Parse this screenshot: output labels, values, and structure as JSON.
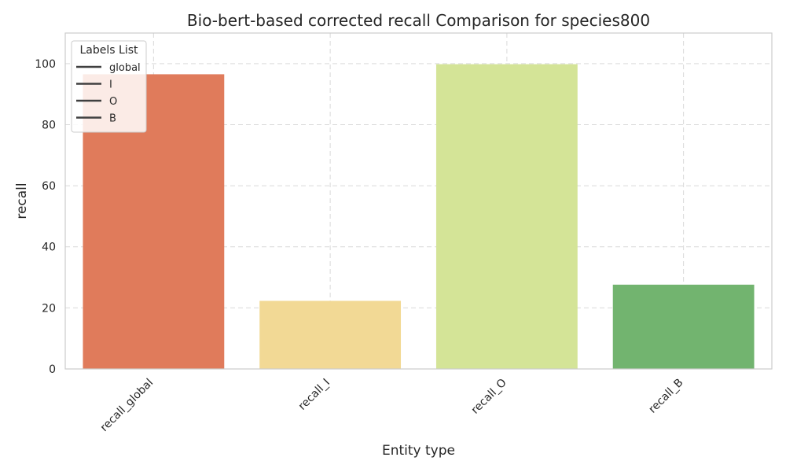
{
  "chart_data": {
    "type": "bar",
    "title": "Bio-bert-based corrected recall Comparison for species800",
    "xlabel": "Entity type",
    "ylabel": "recall",
    "categories": [
      "recall_global",
      "recall_I",
      "recall_O",
      "recall_B"
    ],
    "values": [
      96.5,
      22.3,
      99.8,
      27.6
    ],
    "colors": [
      "#e07b5b",
      "#f2d995",
      "#d4e497",
      "#72b46f"
    ],
    "ylim": [
      0,
      110
    ],
    "yticks": [
      0,
      20,
      40,
      60,
      80,
      100
    ],
    "grid": true,
    "legend": {
      "title": "Labels List",
      "placement": "top-left",
      "entries": [
        "global",
        "I",
        "O",
        "B"
      ],
      "swatch_color": "#3f3f3f"
    }
  }
}
